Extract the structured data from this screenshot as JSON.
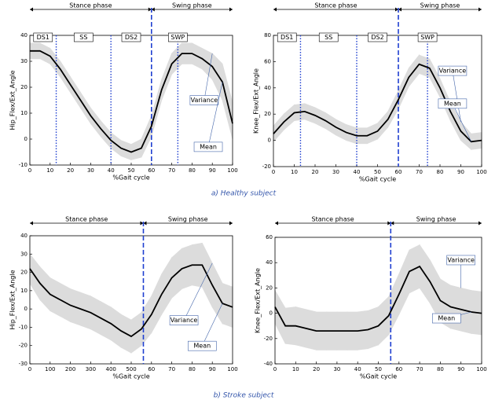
{
  "captions": [
    "a) Healthy subject",
    "b) Stroke subject"
  ],
  "chart_data": [
    {
      "type": "line",
      "ylabel": "Hip_Flex/Ext_Angle",
      "xlabel": "%Gait cycle",
      "xlim": [
        0,
        100
      ],
      "xticks": [
        0,
        10,
        20,
        30,
        40,
        50,
        60,
        70,
        80,
        90,
        100
      ],
      "ylim": [
        -10,
        40
      ],
      "yticks": [
        -10,
        0,
        10,
        20,
        30,
        40
      ],
      "phases": [
        "Stance phase",
        "Swing phase"
      ],
      "stance_end": 60,
      "subphases": [
        "DS1",
        "SS",
        "DS2",
        "SWP"
      ],
      "subphase_lines": [
        13,
        40,
        73
      ],
      "x": [
        0,
        5,
        10,
        15,
        20,
        25,
        30,
        35,
        40,
        45,
        50,
        55,
        60,
        65,
        70,
        75,
        80,
        85,
        90,
        95,
        100
      ],
      "series": [
        {
          "name": "Mean",
          "color": "#000000",
          "values": [
            34,
            34,
            32,
            27,
            21,
            15,
            9,
            4,
            -0.5,
            -3.5,
            -5,
            -3.5,
            5,
            19,
            29,
            33,
            33,
            31,
            28,
            22,
            6
          ]
        },
        {
          "name": "Variance",
          "color": "#dcdcdc",
          "lower": [
            31,
            31,
            29,
            24,
            18,
            12,
            6,
            1,
            -3.5,
            -6.5,
            -8,
            -7,
            1,
            15,
            25,
            29,
            29,
            27,
            23,
            15,
            0
          ],
          "upper": [
            37,
            37,
            35,
            30,
            24,
            18,
            12,
            7,
            2.5,
            -0.5,
            -2,
            0,
            9,
            23,
            33,
            37,
            37,
            35,
            33,
            29,
            14
          ]
        }
      ]
    },
    {
      "type": "line",
      "ylabel": "Knee_Flex/Ext_Angle",
      "xlabel": "%Gait cycle",
      "xlim": [
        0,
        100
      ],
      "xticks": [
        0,
        10,
        20,
        30,
        40,
        50,
        60,
        70,
        80,
        90,
        100
      ],
      "ylim": [
        -20,
        80
      ],
      "yticks": [
        -20,
        0,
        20,
        40,
        60,
        80
      ],
      "phases": [
        "Stance phase",
        "Swing phase"
      ],
      "stance_end": 60,
      "subphases": [
        "DS1",
        "SS",
        "DS2",
        "SWP"
      ],
      "subphase_lines": [
        13,
        40,
        74
      ],
      "x": [
        0,
        5,
        10,
        15,
        20,
        25,
        30,
        35,
        40,
        45,
        50,
        55,
        60,
        65,
        70,
        75,
        80,
        85,
        90,
        95,
        100
      ],
      "series": [
        {
          "name": "Mean",
          "color": "#000000",
          "values": [
            5,
            14,
            21,
            22,
            19,
            15,
            10,
            6,
            3.5,
            3.5,
            7,
            16,
            31,
            48,
            58,
            55,
            40,
            22,
            7,
            -1,
            0
          ]
        },
        {
          "name": "Variance",
          "color": "#dcdcdc",
          "lower": [
            -1,
            8,
            15,
            16,
            13,
            9,
            4,
            0,
            -2.5,
            -2.5,
            1,
            10,
            24,
            41,
            51,
            48,
            33,
            15,
            0,
            -7,
            -6
          ],
          "upper": [
            11,
            20,
            27,
            28,
            25,
            21,
            16,
            12,
            9.5,
            9.5,
            13,
            22,
            38,
            55,
            65,
            62,
            47,
            29,
            14,
            5,
            6
          ]
        }
      ]
    },
    {
      "type": "line",
      "ylabel": "Hip_Flex/Ext_Angle",
      "xlabel": "%Gait cycle",
      "xlim": [
        0,
        100
      ],
      "xticks": [
        0,
        {
          "value": 10,
          "label": "100"
        },
        {
          "value": 20,
          "label": "200"
        },
        {
          "value": 30,
          "label": "300"
        },
        {
          "value": 40,
          "label": "400"
        },
        {
          "value": 50,
          "label": "500"
        },
        60,
        70,
        80,
        90,
        100
      ],
      "ylim": [
        -30,
        40
      ],
      "yticks": [
        -30,
        -20,
        -10,
        0,
        10,
        20,
        30,
        40
      ],
      "phases": [
        "Stance phase",
        "Swing phase"
      ],
      "stance_end": 56,
      "x": [
        0,
        5,
        10,
        15,
        20,
        25,
        30,
        35,
        40,
        45,
        50,
        55,
        60,
        65,
        70,
        75,
        80,
        85,
        90,
        95,
        100
      ],
      "series": [
        {
          "name": "Mean",
          "color": "#000000",
          "values": [
            22,
            14,
            8,
            5,
            2,
            0,
            -2,
            -5,
            -8,
            -12,
            -15,
            -11,
            -3,
            8,
            17,
            22,
            24,
            24,
            13,
            3,
            1
          ]
        },
        {
          "name": "Variance",
          "color": "#dcdcdc",
          "lower": [
            14,
            5,
            -1,
            -4,
            -7,
            -9,
            -11,
            -14,
            -17,
            -21,
            -24,
            -20,
            -13,
            -3,
            6,
            11,
            13,
            12,
            1,
            -8,
            -10
          ],
          "upper": [
            30,
            23,
            17,
            14,
            11,
            9,
            7,
            4,
            1,
            -3,
            -6,
            -2,
            7,
            19,
            28,
            33,
            35,
            36,
            25,
            14,
            12
          ]
        }
      ]
    },
    {
      "type": "line",
      "ylabel": "Knee_Flex/Ext_Angle",
      "xlabel": "%Gait cycle",
      "xlim": [
        0,
        100
      ],
      "xticks": [
        0,
        10,
        20,
        30,
        40,
        50,
        60,
        70,
        80,
        90,
        100
      ],
      "ylim": [
        -40,
        60
      ],
      "yticks": [
        -40,
        -20,
        0,
        20,
        40,
        60
      ],
      "phases": [
        "Stance phase",
        "Swing phase"
      ],
      "stance_end": 56,
      "x": [
        0,
        5,
        10,
        15,
        20,
        25,
        30,
        35,
        40,
        45,
        50,
        55,
        60,
        65,
        70,
        75,
        80,
        85,
        90,
        95,
        100
      ],
      "series": [
        {
          "name": "Mean",
          "color": "#000000",
          "values": [
            5,
            -10,
            -10,
            -12,
            -14,
            -14,
            -14,
            -14,
            -14,
            -13,
            -10,
            -2,
            15,
            33,
            37,
            25,
            10,
            5,
            3,
            1,
            0
          ]
        },
        {
          "name": "Variance",
          "color": "#dcdcdc",
          "lower": [
            -8,
            -24,
            -25,
            -27,
            -29,
            -29,
            -29,
            -29,
            -29,
            -28,
            -25,
            -17,
            -1,
            16,
            20,
            8,
            -7,
            -12,
            -14,
            -16,
            -17
          ],
          "upper": [
            18,
            4,
            5,
            3,
            1,
            1,
            1,
            1,
            1,
            2,
            5,
            13,
            31,
            50,
            54,
            42,
            27,
            22,
            20,
            18,
            17
          ]
        }
      ]
    }
  ]
}
